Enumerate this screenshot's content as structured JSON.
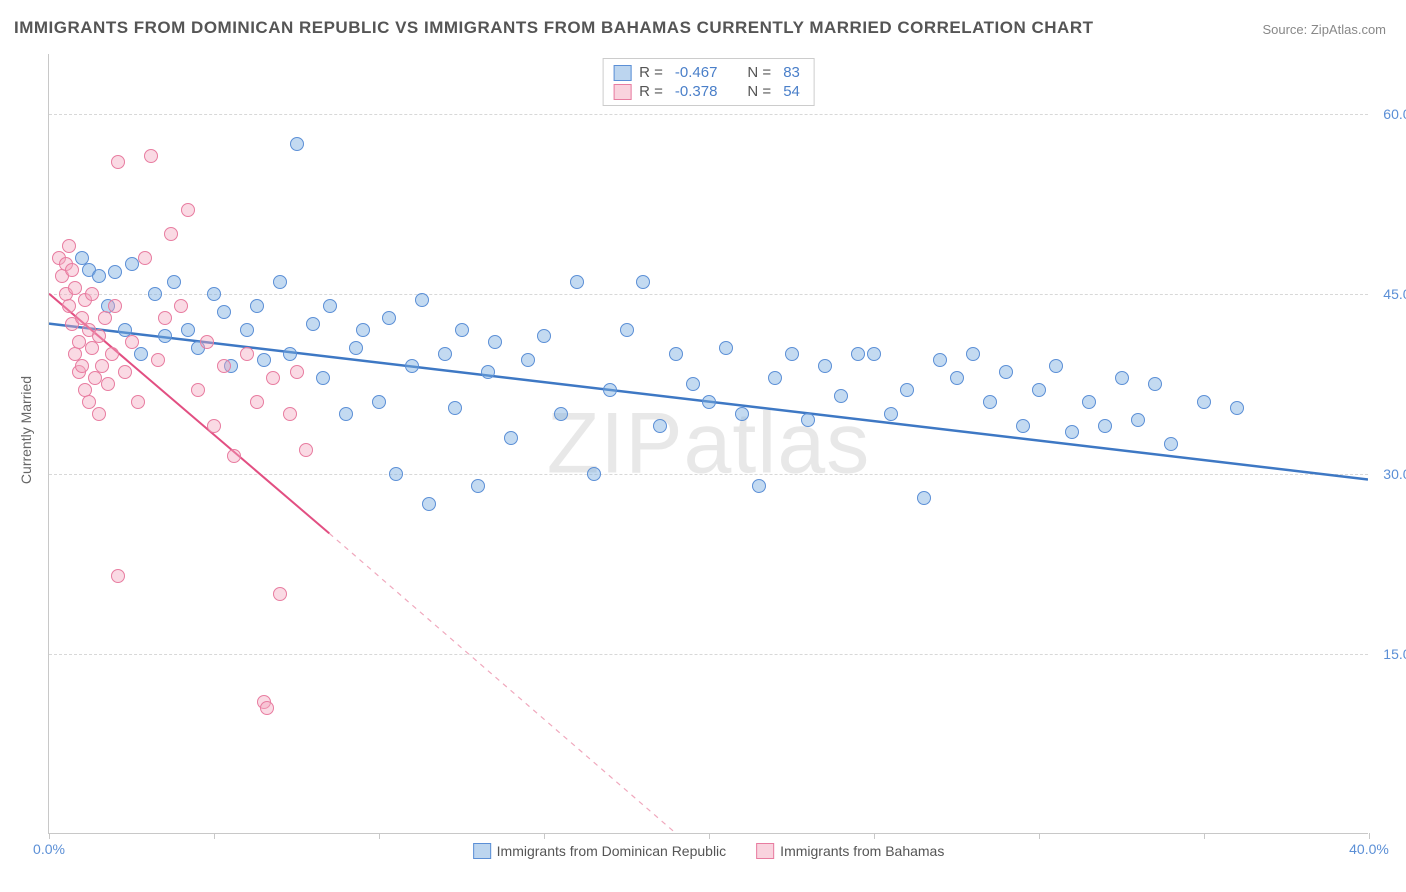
{
  "title": "IMMIGRANTS FROM DOMINICAN REPUBLIC VS IMMIGRANTS FROM BAHAMAS CURRENTLY MARRIED CORRELATION CHART",
  "source": "Source: ZipAtlas.com",
  "watermark": "ZIPatlas",
  "y_axis_label": "Currently Married",
  "chart": {
    "type": "scatter",
    "xlim": [
      0,
      40
    ],
    "ylim": [
      0,
      65
    ],
    "y_ticks": [
      15.0,
      30.0,
      45.0,
      60.0
    ],
    "y_tick_labels": [
      "15.0%",
      "30.0%",
      "45.0%",
      "60.0%"
    ],
    "x_tick_positions": [
      0,
      5,
      10,
      15,
      20,
      25,
      30,
      35,
      40
    ],
    "x_visible_labels": {
      "0": "0.0%",
      "40": "40.0%"
    },
    "grid_color": "#d8d8d8",
    "background_color": "#ffffff",
    "axis_color": "#c8c8c8",
    "tick_label_color": "#5b8fd6",
    "marker_radius": 7,
    "series": [
      {
        "key": "dominican",
        "label": "Immigrants from Dominican Republic",
        "color_fill": "rgba(122,172,224,0.45)",
        "color_stroke": "#5b8fd6",
        "class": "blue",
        "R": "-0.467",
        "N": "83",
        "trend": {
          "x1": 0,
          "y1": 42.5,
          "x2": 40,
          "y2": 29.5,
          "stroke": "#3e78c4",
          "width": 2.5,
          "dash": "none"
        },
        "points": [
          [
            1.0,
            48.0
          ],
          [
            1.2,
            47.0
          ],
          [
            1.5,
            46.5
          ],
          [
            1.8,
            44.0
          ],
          [
            2.0,
            46.8
          ],
          [
            2.3,
            42.0
          ],
          [
            2.5,
            47.5
          ],
          [
            2.8,
            40.0
          ],
          [
            3.2,
            45.0
          ],
          [
            3.5,
            41.5
          ],
          [
            3.8,
            46.0
          ],
          [
            4.2,
            42.0
          ],
          [
            4.5,
            40.5
          ],
          [
            5.0,
            45.0
          ],
          [
            5.3,
            43.5
          ],
          [
            5.5,
            39.0
          ],
          [
            6.0,
            42.0
          ],
          [
            6.3,
            44.0
          ],
          [
            6.5,
            39.5
          ],
          [
            7.0,
            46.0
          ],
          [
            7.3,
            40.0
          ],
          [
            7.5,
            57.5
          ],
          [
            8.0,
            42.5
          ],
          [
            8.3,
            38.0
          ],
          [
            8.5,
            44.0
          ],
          [
            9.0,
            35.0
          ],
          [
            9.3,
            40.5
          ],
          [
            9.5,
            42.0
          ],
          [
            10.0,
            36.0
          ],
          [
            10.3,
            43.0
          ],
          [
            10.5,
            30.0
          ],
          [
            11.0,
            39.0
          ],
          [
            11.3,
            44.5
          ],
          [
            11.5,
            27.5
          ],
          [
            12.0,
            40.0
          ],
          [
            12.3,
            35.5
          ],
          [
            12.5,
            42.0
          ],
          [
            13.0,
            29.0
          ],
          [
            13.3,
            38.5
          ],
          [
            13.5,
            41.0
          ],
          [
            14.0,
            33.0
          ],
          [
            14.5,
            39.5
          ],
          [
            15.0,
            41.5
          ],
          [
            15.5,
            35.0
          ],
          [
            16.0,
            46.0
          ],
          [
            16.5,
            30.0
          ],
          [
            17.0,
            37.0
          ],
          [
            17.5,
            42.0
          ],
          [
            18.0,
            46.0
          ],
          [
            18.5,
            34.0
          ],
          [
            19.0,
            40.0
          ],
          [
            19.5,
            37.5
          ],
          [
            20.0,
            36.0
          ],
          [
            20.5,
            40.5
          ],
          [
            21.0,
            35.0
          ],
          [
            21.5,
            29.0
          ],
          [
            22.0,
            38.0
          ],
          [
            22.5,
            40.0
          ],
          [
            23.0,
            34.5
          ],
          [
            23.5,
            39.0
          ],
          [
            24.0,
            36.5
          ],
          [
            24.5,
            40.0
          ],
          [
            25.0,
            40.0
          ],
          [
            25.5,
            35.0
          ],
          [
            26.0,
            37.0
          ],
          [
            26.5,
            28.0
          ],
          [
            27.0,
            39.5
          ],
          [
            27.5,
            38.0
          ],
          [
            28.0,
            40.0
          ],
          [
            28.5,
            36.0
          ],
          [
            29.0,
            38.5
          ],
          [
            29.5,
            34.0
          ],
          [
            30.0,
            37.0
          ],
          [
            30.5,
            39.0
          ],
          [
            31.0,
            33.5
          ],
          [
            31.5,
            36.0
          ],
          [
            32.0,
            34.0
          ],
          [
            32.5,
            38.0
          ],
          [
            33.0,
            34.5
          ],
          [
            33.5,
            37.5
          ],
          [
            34.0,
            32.5
          ],
          [
            35.0,
            36.0
          ],
          [
            36.0,
            35.5
          ]
        ]
      },
      {
        "key": "bahamas",
        "label": "Immigrants from Bahamas",
        "color_fill": "rgba(244,168,190,0.42)",
        "color_stroke": "#e87ca0",
        "class": "pink",
        "R": "-0.378",
        "N": "54",
        "trend_solid": {
          "x1": 0,
          "y1": 45.0,
          "x2": 8.5,
          "y2": 25.0,
          "stroke": "#e24f82",
          "width": 2,
          "dash": "none"
        },
        "trend_dash": {
          "x1": 8.5,
          "y1": 25.0,
          "x2": 19.0,
          "y2": 0.0,
          "stroke": "#f0a8bd",
          "width": 1.2,
          "dash": "5,5"
        },
        "points": [
          [
            0.3,
            48.0
          ],
          [
            0.4,
            46.5
          ],
          [
            0.5,
            47.5
          ],
          [
            0.5,
            45.0
          ],
          [
            0.6,
            49.0
          ],
          [
            0.6,
            44.0
          ],
          [
            0.7,
            42.5
          ],
          [
            0.7,
            47.0
          ],
          [
            0.8,
            40.0
          ],
          [
            0.8,
            45.5
          ],
          [
            0.9,
            41.0
          ],
          [
            0.9,
            38.5
          ],
          [
            1.0,
            43.0
          ],
          [
            1.0,
            39.0
          ],
          [
            1.1,
            44.5
          ],
          [
            1.1,
            37.0
          ],
          [
            1.2,
            42.0
          ],
          [
            1.2,
            36.0
          ],
          [
            1.3,
            40.5
          ],
          [
            1.3,
            45.0
          ],
          [
            1.4,
            38.0
          ],
          [
            1.5,
            41.5
          ],
          [
            1.5,
            35.0
          ],
          [
            1.6,
            39.0
          ],
          [
            1.7,
            43.0
          ],
          [
            1.8,
            37.5
          ],
          [
            1.9,
            40.0
          ],
          [
            2.0,
            44.0
          ],
          [
            2.1,
            56.0
          ],
          [
            2.1,
            21.5
          ],
          [
            2.3,
            38.5
          ],
          [
            2.5,
            41.0
          ],
          [
            2.7,
            36.0
          ],
          [
            2.9,
            48.0
          ],
          [
            3.1,
            56.5
          ],
          [
            3.3,
            39.5
          ],
          [
            3.5,
            43.0
          ],
          [
            3.7,
            50.0
          ],
          [
            4.0,
            44.0
          ],
          [
            4.2,
            52.0
          ],
          [
            4.5,
            37.0
          ],
          [
            4.8,
            41.0
          ],
          [
            5.0,
            34.0
          ],
          [
            5.3,
            39.0
          ],
          [
            5.6,
            31.5
          ],
          [
            6.0,
            40.0
          ],
          [
            6.3,
            36.0
          ],
          [
            6.5,
            11.0
          ],
          [
            6.6,
            10.5
          ],
          [
            6.8,
            38.0
          ],
          [
            7.0,
            20.0
          ],
          [
            7.3,
            35.0
          ],
          [
            7.5,
            38.5
          ],
          [
            7.8,
            32.0
          ]
        ]
      }
    ]
  },
  "stats_legend_labels": {
    "R": "R =",
    "N": "N ="
  }
}
